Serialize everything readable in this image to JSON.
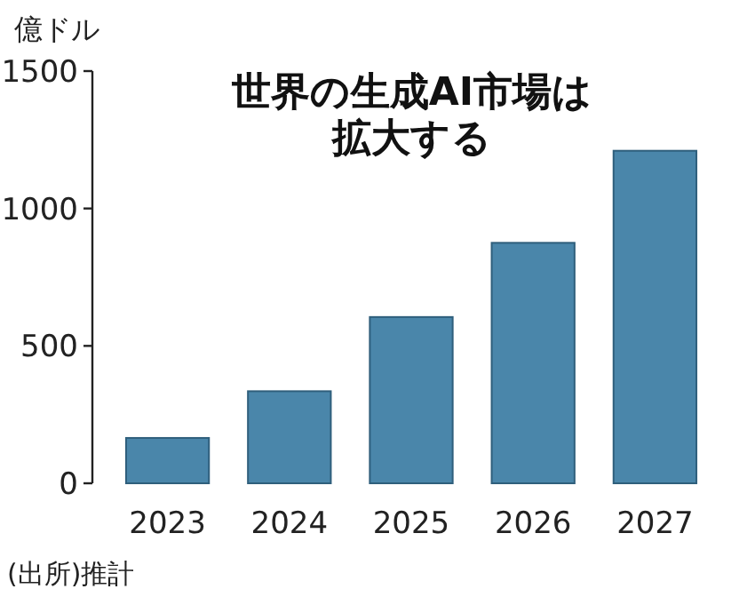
{
  "chart_data": {
    "type": "bar",
    "title": "世界の生成AI市場は拡大する",
    "ylabel": "億ドル",
    "categories": [
      "2023",
      "2024",
      "2025",
      "2026",
      "2027"
    ],
    "values": [
      165,
      335,
      605,
      875,
      1210
    ],
    "color": "#4a86aa",
    "ylim": [
      0,
      1500
    ],
    "yticks": [
      0,
      500,
      1000,
      1500
    ],
    "annotations": [
      "(出所)推計"
    ]
  }
}
